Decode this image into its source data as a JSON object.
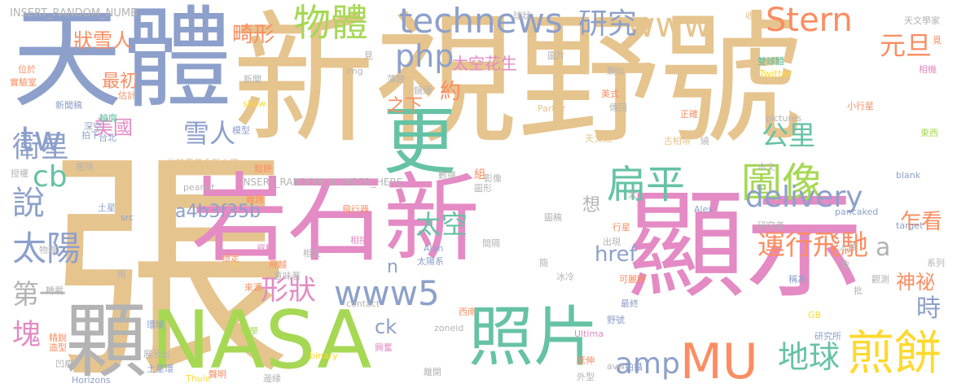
{
  "palette": {
    "tan": "#e6c48e",
    "pink": "#e48ac4",
    "green": "#a6d854",
    "teal": "#66c2a5",
    "blue": "#8da0cb",
    "orange": "#fc8d62",
    "gray": "#b3b3b3",
    "yellow": "#ffd92f"
  },
  "words": [
    {
      "text": "張",
      "color": "#e6c48e"
    },
    {
      "text": "新視野號",
      "color": "#e6c48e"
    },
    {
      "text": "天體",
      "color": "#8da0cb"
    },
    {
      "text": "顯示",
      "color": "#e48ac4"
    },
    {
      "text": "岩石新",
      "color": "#e48ac4"
    },
    {
      "text": "NASA",
      "color": "#a6d854"
    },
    {
      "text": "顆",
      "color": "#b3b3b3"
    },
    {
      "text": "更",
      "color": "#66c2a5"
    },
    {
      "text": "照片",
      "color": "#66c2a5"
    },
    {
      "text": "MU",
      "color": "#fc8d62"
    },
    {
      "text": "煎餅",
      "color": "#ffd92f"
    },
    {
      "text": "圖像",
      "color": "#a6d854"
    },
    {
      "text": "technews",
      "color": "#8da0cb"
    },
    {
      "text": "扁平",
      "color": "#66c2a5"
    },
    {
      "text": "物體",
      "color": "#a6d854"
    },
    {
      "text": "www5",
      "color": "#8da0cb"
    },
    {
      "text": "www",
      "color": "#e6c48e"
    },
    {
      "text": "Stern",
      "color": "#fc8d62"
    },
    {
      "text": "php",
      "color": "#8da0cb"
    },
    {
      "text": "研究",
      "color": "#8da0cb"
    },
    {
      "text": "delivery",
      "color": "#8da0cb"
    },
    {
      "text": "地球",
      "color": "#66c2a5"
    },
    {
      "text": "amp",
      "color": "#8da0cb"
    },
    {
      "text": "太陽",
      "color": "#8da0cb"
    },
    {
      "text": "說",
      "color": "#8da0cb"
    },
    {
      "text": "tw",
      "color": "#8da0cb"
    },
    {
      "text": "衛星",
      "color": "#8da0cb"
    },
    {
      "text": "塊",
      "color": "#e48ac4"
    },
    {
      "text": "cb",
      "color": "#66c2a5"
    },
    {
      "text": "第一",
      "color": "#b3b3b3"
    },
    {
      "text": "雪人",
      "color": "#8da0cb"
    },
    {
      "text": "美國",
      "color": "#e48ac4"
    },
    {
      "text": "公里",
      "color": "#66c2a5"
    },
    {
      "text": "元旦",
      "color": "#fc8d62"
    },
    {
      "text": "運行飛馳",
      "color": "#fc8d62"
    },
    {
      "text": "a",
      "color": "#b3b3b3"
    },
    {
      "text": "形狀",
      "color": "#e48ac4"
    },
    {
      "text": "太空",
      "color": "#66c2a5"
    },
    {
      "text": "約",
      "color": "#fc8d62"
    },
    {
      "text": "之下",
      "color": "#fc8d62"
    },
    {
      "text": "乍看",
      "color": "#fc8d62"
    },
    {
      "text": "時",
      "color": "#8da0cb"
    },
    {
      "text": "神祕",
      "color": "#fc8d62"
    },
    {
      "text": "href",
      "color": "#8da0cb"
    },
    {
      "text": "a4b3f35b",
      "color": "#8da0cb"
    },
    {
      "text": "畸形",
      "color": "#fc8d62"
    },
    {
      "text": "狀雪人",
      "color": "#fc8d62"
    },
    {
      "text": "最初",
      "color": "#fc8d62"
    },
    {
      "text": "太空花生",
      "color": "#e48ac4"
    },
    {
      "text": "ck",
      "color": "#8da0cb"
    },
    {
      "text": "想",
      "color": "#b3b3b3"
    },
    {
      "text": "n",
      "color": "#8da0cb"
    },
    {
      "text": "INSERT_RANDOM_NUMB",
      "color": "#b3b3b3"
    },
    {
      "text": "INSERT_RANDOM_NUMBER_HERE",
      "color": "#b3b3b3"
    },
    {
      "text": "約翰霍普金斯大學",
      "color": "#e6c48e"
    },
    {
      "text": "Twitter",
      "color": "#ffd92f"
    },
    {
      "text": "Alan",
      "color": "#8da0cb"
    },
    {
      "text": "Alex",
      "color": "#8da0cb"
    },
    {
      "text": "Parker",
      "color": "#e6c48e"
    },
    {
      "text": "pictures",
      "color": "#b3b3b3"
    },
    {
      "text": "peanut",
      "color": "#b3b3b3"
    },
    {
      "text": "pancaked",
      "color": "#8da0cb"
    },
    {
      "text": "target",
      "color": "#8da0cb"
    },
    {
      "text": "zoneid",
      "color": "#b3b3b3"
    },
    {
      "text": "binary",
      "color": "#ffd92f"
    },
    {
      "text": "Ultima",
      "color": "#e48ac4"
    },
    {
      "text": "Horizons",
      "color": "#8da0cb"
    },
    {
      "text": "Thule",
      "color": "#ffd92f"
    },
    {
      "text": "avw",
      "color": "#b3b3b3"
    },
    {
      "text": "GB",
      "color": "#ffd92f"
    },
    {
      "text": "contact",
      "color": "#b3b3b3"
    },
    {
      "text": "show",
      "color": "#ffd92f"
    },
    {
      "text": "img",
      "color": "#b3b3b3"
    },
    {
      "text": "src",
      "color": "#8da0cb"
    },
    {
      "text": "blank",
      "color": "#8da0cb"
    },
    {
      "text": "s",
      "color": "#ffd92f"
    },
    {
      "text": "天文學家",
      "color": "#b3b3b3"
    },
    {
      "text": "雙球體",
      "color": "#66c2a5"
    },
    {
      "text": "小行星",
      "color": "#fc8d62"
    },
    {
      "text": "古柏帶",
      "color": "#e6c48e"
    },
    {
      "text": "天文館",
      "color": "#e6c48e"
    },
    {
      "text": "新聞稿",
      "color": "#8da0cb"
    },
    {
      "text": "太陽系",
      "color": "#8da0cb"
    },
    {
      "text": "研究所",
      "color": "#8da0cb"
    },
    {
      "text": "實驗室",
      "color": "#fc8d62"
    },
    {
      "text": "土星環",
      "color": "#8da0cb"
    },
    {
      "text": "飛行器",
      "color": "#fc8d62"
    },
    {
      "text": "球狀",
      "color": "#b3b3b3"
    },
    {
      "text": "收集",
      "color": "#e6c48e"
    },
    {
      "text": "位於",
      "color": "#fc8d62"
    },
    {
      "text": "估計",
      "color": "#fc8d62"
    },
    {
      "text": "拍攝",
      "color": "#8da0cb"
    },
    {
      "text": "模型",
      "color": "#8da0cb"
    },
    {
      "text": "圖片",
      "color": "#b3b3b3"
    },
    {
      "text": "類似",
      "color": "#b3b3b3"
    },
    {
      "text": "美式",
      "color": "#fc8d62"
    },
    {
      "text": "正確",
      "color": "#fc8d62"
    },
    {
      "text": "東西",
      "color": "#a6d854"
    },
    {
      "text": "本文",
      "color": "#b3b3b3"
    },
    {
      "text": "行星",
      "color": "#fc8d62"
    },
    {
      "text": "研究者",
      "color": "#b3b3b3"
    },
    {
      "text": "人員",
      "color": "#b3b3b3"
    },
    {
      "text": "系列",
      "color": "#b3b3b3"
    },
    {
      "text": "稱為",
      "color": "#8da0cb"
    },
    {
      "text": "觀測",
      "color": "#b3b3b3"
    },
    {
      "text": "可麗餅",
      "color": "#fc8d62"
    },
    {
      "text": "最終",
      "color": "#8da0cb"
    },
    {
      "text": "野號",
      "color": "#8da0cb"
    },
    {
      "text": "延伸",
      "color": "#fc8d62"
    },
    {
      "text": "外型",
      "color": "#b3b3b3"
    },
    {
      "text": "相接",
      "color": "#e48ac4"
    },
    {
      "text": "相互",
      "color": "#b3b3b3"
    },
    {
      "text": "數據",
      "color": "#b3b3b3"
    },
    {
      "text": "影像",
      "color": "#b3b3b3"
    },
    {
      "text": "圖形",
      "color": "#b3b3b3"
    },
    {
      "text": "圖稿",
      "color": "#b3b3b3"
    },
    {
      "text": "資料",
      "color": "#e48ac4"
    },
    {
      "text": "難題",
      "color": "#fc8d62"
    },
    {
      "text": "飛越",
      "color": "#fc8d62"
    },
    {
      "text": "意味著",
      "color": "#b3b3b3"
    },
    {
      "text": "來源",
      "color": "#fc8d62"
    },
    {
      "text": "科學",
      "color": "#a6d854"
    },
    {
      "text": "興奮",
      "color": "#e48ac4"
    },
    {
      "text": "離開",
      "color": "#b3b3b3"
    },
    {
      "text": "邊緣",
      "color": "#b3b3b3"
    },
    {
      "text": "聲明",
      "color": "#fc8d62"
    },
    {
      "text": "環境",
      "color": "#8da0cb"
    },
    {
      "text": "凹痕",
      "color": "#b3b3b3"
    },
    {
      "text": "展示出",
      "color": "#b3b3b3"
    },
    {
      "text": "薄餅",
      "color": "#b3b3b3"
    },
    {
      "text": "鏡頭",
      "color": "#b3b3b3"
    },
    {
      "text": "傳回",
      "color": "#b3b3b3"
    },
    {
      "text": "鬆餅",
      "color": "#fc8d62"
    },
    {
      "text": "穩定",
      "color": "#fc8d62"
    },
    {
      "text": "團隊",
      "color": "#b3b3b3"
    },
    {
      "text": "拍下",
      "color": "#8da0cb"
    },
    {
      "text": "深空",
      "color": "#8da0cb"
    },
    {
      "text": "台北",
      "color": "#8da0cb"
    },
    {
      "text": "新聞",
      "color": "#b3b3b3"
    },
    {
      "text": "見",
      "color": "#b3b3b3"
    },
    {
      "text": "雨",
      "color": "#b3b3b3"
    },
    {
      "text": "冰冷",
      "color": "#b3b3b3"
    },
    {
      "text": "西南",
      "color": "#fc8d62"
    },
    {
      "text": "太",
      "color": "#b3b3b3"
    },
    {
      "text": "組",
      "color": "#fc8d62"
    },
    {
      "text": "繞",
      "color": "#b3b3b3"
    },
    {
      "text": "批",
      "color": "#b3b3b3"
    },
    {
      "text": "像",
      "color": "#b3b3b3"
    },
    {
      "text": "出現",
      "color": "#b3b3b3"
    },
    {
      "text": "間隔",
      "color": "#b3b3b3"
    },
    {
      "text": "簡",
      "color": "#b3b3b3"
    },
    {
      "text": "覓",
      "color": "#fc8d62"
    },
    {
      "text": "授權",
      "color": "#b3b3b3"
    },
    {
      "text": "物理",
      "color": "#b3b3b3"
    },
    {
      "text": "轉載",
      "color": "#b3b3b3"
    },
    {
      "text": "精銳",
      "color": "#fc8d62"
    },
    {
      "text": "造型",
      "color": "#fc8d62"
    },
    {
      "text": "相機",
      "color": "#e48ac4"
    },
    {
      "text": "輪廓",
      "color": "#66c2a5"
    },
    {
      "text": "土星",
      "color": "#8da0cb"
    }
  ]
}
